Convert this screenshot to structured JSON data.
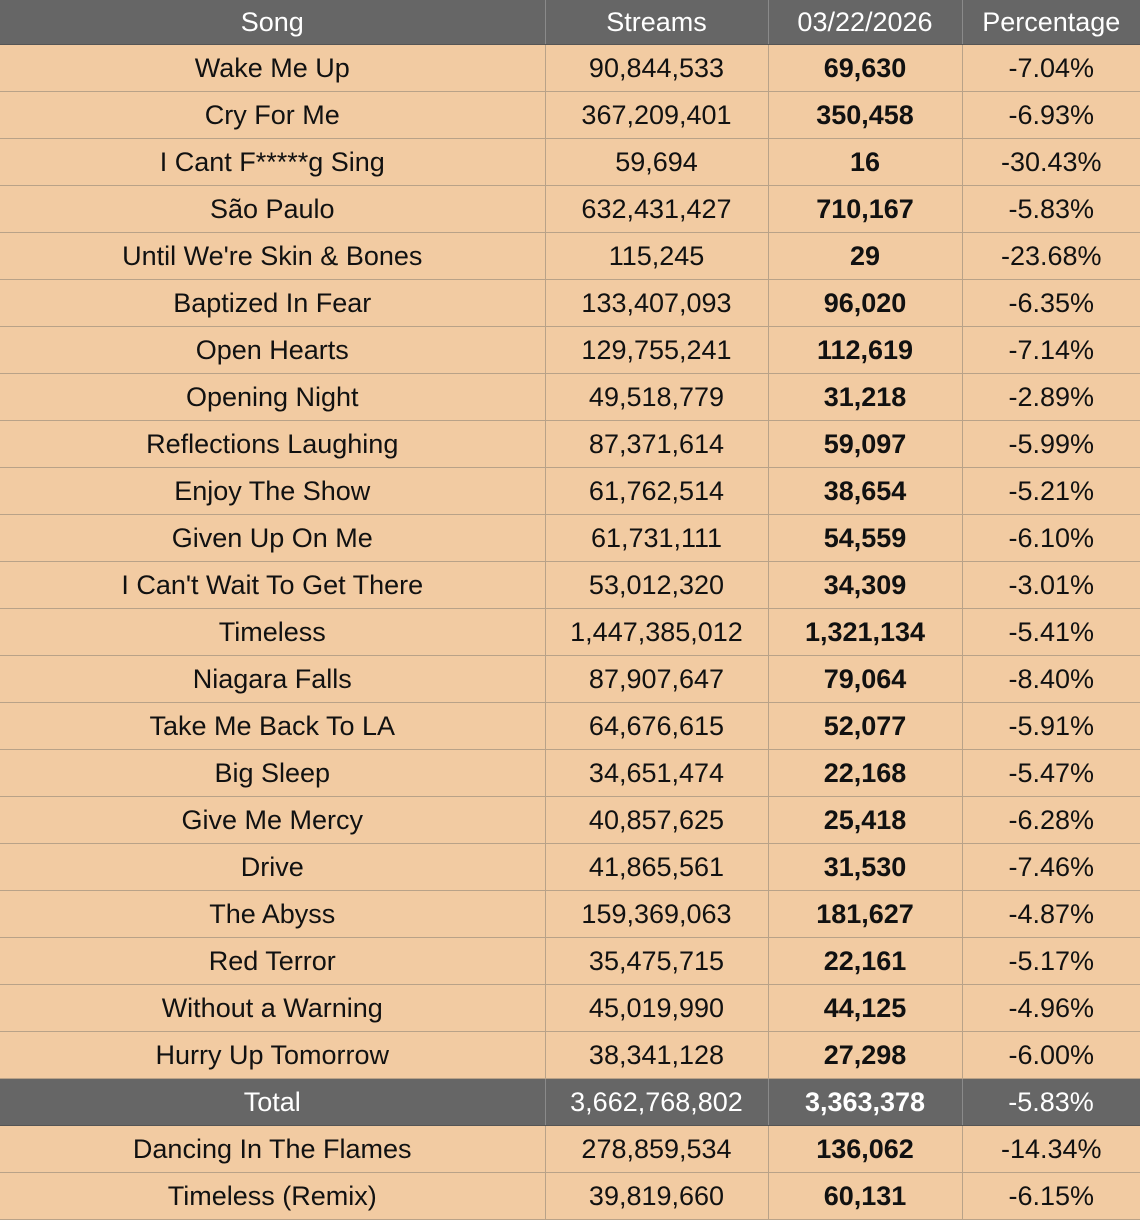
{
  "headers": {
    "song": "Song",
    "streams": "Streams",
    "date": "03/22/2026",
    "percentage": "Percentage"
  },
  "rows": [
    {
      "song": "Wake Me Up",
      "streams": "90,844,533",
      "daily": "69,630",
      "pct": "-7.04%"
    },
    {
      "song": "Cry For Me",
      "streams": "367,209,401",
      "daily": "350,458",
      "pct": "-6.93%"
    },
    {
      "song": "I Cant F*****g Sing",
      "streams": "59,694",
      "daily": "16",
      "pct": "-30.43%"
    },
    {
      "song": "São Paulo",
      "streams": "632,431,427",
      "daily": "710,167",
      "pct": "-5.83%"
    },
    {
      "song": "Until We're Skin & Bones",
      "streams": "115,245",
      "daily": "29",
      "pct": "-23.68%"
    },
    {
      "song": "Baptized In Fear",
      "streams": "133,407,093",
      "daily": "96,020",
      "pct": "-6.35%"
    },
    {
      "song": "Open Hearts",
      "streams": "129,755,241",
      "daily": "112,619",
      "pct": "-7.14%"
    },
    {
      "song": "Opening Night",
      "streams": "49,518,779",
      "daily": "31,218",
      "pct": "-2.89%"
    },
    {
      "song": "Reflections Laughing",
      "streams": "87,371,614",
      "daily": "59,097",
      "pct": "-5.99%"
    },
    {
      "song": "Enjoy The Show",
      "streams": "61,762,514",
      "daily": "38,654",
      "pct": "-5.21%"
    },
    {
      "song": "Given Up On Me",
      "streams": "61,731,111",
      "daily": "54,559",
      "pct": "-6.10%"
    },
    {
      "song": "I Can't Wait To Get There",
      "streams": "53,012,320",
      "daily": "34,309",
      "pct": "-3.01%"
    },
    {
      "song": "Timeless",
      "streams": "1,447,385,012",
      "daily": "1,321,134",
      "pct": "-5.41%"
    },
    {
      "song": "Niagara Falls",
      "streams": "87,907,647",
      "daily": "79,064",
      "pct": "-8.40%"
    },
    {
      "song": "Take Me Back To LA",
      "streams": "64,676,615",
      "daily": "52,077",
      "pct": "-5.91%"
    },
    {
      "song": "Big Sleep",
      "streams": "34,651,474",
      "daily": "22,168",
      "pct": "-5.47%"
    },
    {
      "song": "Give Me Mercy",
      "streams": "40,857,625",
      "daily": "25,418",
      "pct": "-6.28%"
    },
    {
      "song": "Drive",
      "streams": "41,865,561",
      "daily": "31,530",
      "pct": "-7.46%"
    },
    {
      "song": "The Abyss",
      "streams": "159,369,063",
      "daily": "181,627",
      "pct": "-4.87%"
    },
    {
      "song": "Red Terror",
      "streams": "35,475,715",
      "daily": "22,161",
      "pct": "-5.17%"
    },
    {
      "song": "Without a Warning",
      "streams": "45,019,990",
      "daily": "44,125",
      "pct": "-4.96%"
    },
    {
      "song": "Hurry Up Tomorrow",
      "streams": "38,341,128",
      "daily": "27,298",
      "pct": "-6.00%"
    }
  ],
  "total": {
    "song": "Total",
    "streams": "3,662,768,802",
    "daily": "3,363,378",
    "pct": "-5.83%"
  },
  "extra_rows": [
    {
      "song": "Dancing In The Flames",
      "streams": "278,859,534",
      "daily": "136,062",
      "pct": "-14.34%"
    },
    {
      "song": "Timeless (Remix)",
      "streams": "39,819,660",
      "daily": "60,131",
      "pct": "-6.15%"
    }
  ],
  "colors": {
    "header_bg": "#666666",
    "header_text": "#ffffff",
    "row_bg": "#f2cba2",
    "border": "#b9a288",
    "text": "#111111"
  }
}
